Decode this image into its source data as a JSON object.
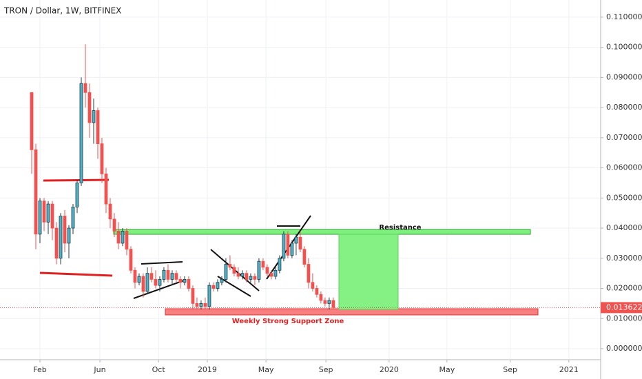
{
  "chart_data": {
    "type": "candlestick",
    "title": "TRON / Dollar, 1W, BITFINEX",
    "open": [
      0.085,
      0.066,
      0.038,
      0.049,
      0.042,
      0.048,
      0.04,
      0.03,
      0.044,
      0.035,
      0.04,
      0.047,
      0.055,
      0.088,
      0.085,
      0.075,
      0.079,
      0.068,
      0.058,
      0.048,
      0.043,
      0.039,
      0.035,
      0.039,
      0.033,
      0.026,
      0.022,
      0.024,
      0.019,
      0.025,
      0.023,
      0.021,
      0.023,
      0.026,
      0.023,
      0.025,
      0.023,
      0.022,
      0.023,
      0.02,
      0.015,
      0.014,
      0.015,
      0.014,
      0.021,
      0.02,
      0.022,
      0.023,
      0.028,
      0.027,
      0.025,
      0.024,
      0.025,
      0.023,
      0.024,
      0.023,
      0.029,
      0.027,
      0.025,
      0.024,
      0.026,
      0.03,
      0.038,
      0.031,
      0.035,
      0.037,
      0.033,
      0.028,
      0.022,
      0.02,
      0.018,
      0.016,
      0.015,
      0.016
    ],
    "high": [
      0.085,
      0.068,
      0.05,
      0.05,
      0.049,
      0.049,
      0.042,
      0.045,
      0.046,
      0.041,
      0.048,
      0.056,
      0.09,
      0.101,
      0.088,
      0.083,
      0.08,
      0.07,
      0.06,
      0.05,
      0.045,
      0.042,
      0.04,
      0.04,
      0.034,
      0.027,
      0.025,
      0.025,
      0.027,
      0.027,
      0.026,
      0.024,
      0.027,
      0.028,
      0.026,
      0.026,
      0.024,
      0.024,
      0.024,
      0.021,
      0.017,
      0.016,
      0.017,
      0.022,
      0.022,
      0.023,
      0.024,
      0.03,
      0.031,
      0.028,
      0.027,
      0.026,
      0.026,
      0.025,
      0.025,
      0.03,
      0.03,
      0.028,
      0.026,
      0.027,
      0.031,
      0.039,
      0.039,
      0.036,
      0.038,
      0.039,
      0.034,
      0.03,
      0.025,
      0.021,
      0.019,
      0.017,
      0.017,
      0.017
    ],
    "low": [
      0.058,
      0.033,
      0.035,
      0.039,
      0.038,
      0.036,
      0.028,
      0.028,
      0.032,
      0.03,
      0.038,
      0.045,
      0.054,
      0.08,
      0.07,
      0.068,
      0.063,
      0.055,
      0.045,
      0.04,
      0.037,
      0.033,
      0.034,
      0.031,
      0.025,
      0.02,
      0.021,
      0.017,
      0.018,
      0.022,
      0.02,
      0.019,
      0.022,
      0.022,
      0.021,
      0.022,
      0.02,
      0.021,
      0.019,
      0.013,
      0.013,
      0.013,
      0.013,
      0.013,
      0.019,
      0.019,
      0.021,
      0.022,
      0.026,
      0.024,
      0.023,
      0.023,
      0.022,
      0.022,
      0.021,
      0.022,
      0.026,
      0.024,
      0.023,
      0.023,
      0.025,
      0.029,
      0.03,
      0.03,
      0.031,
      0.032,
      0.027,
      0.02,
      0.019,
      0.017,
      0.015,
      0.014,
      0.013,
      0.013
    ],
    "close": [
      0.066,
      0.038,
      0.049,
      0.042,
      0.048,
      0.04,
      0.03,
      0.044,
      0.035,
      0.04,
      0.047,
      0.055,
      0.088,
      0.085,
      0.075,
      0.079,
      0.068,
      0.058,
      0.048,
      0.043,
      0.039,
      0.035,
      0.039,
      0.033,
      0.026,
      0.022,
      0.024,
      0.019,
      0.025,
      0.023,
      0.021,
      0.023,
      0.026,
      0.023,
      0.025,
      0.023,
      0.022,
      0.023,
      0.02,
      0.015,
      0.014,
      0.015,
      0.014,
      0.021,
      0.02,
      0.022,
      0.023,
      0.028,
      0.027,
      0.025,
      0.024,
      0.025,
      0.023,
      0.024,
      0.023,
      0.029,
      0.027,
      0.025,
      0.024,
      0.026,
      0.03,
      0.038,
      0.031,
      0.035,
      0.037,
      0.033,
      0.028,
      0.022,
      0.02,
      0.018,
      0.016,
      0.015,
      0.016,
      0.013622
    ],
    "up_color": "#4fb0c6",
    "down_color": "#ef5350",
    "last_price": 0.013622,
    "annotations": [
      "Resistance",
      "Weekly Strong Support Zone"
    ],
    "xlim": [
      -7.67,
      137.7
    ],
    "xticks": [
      {
        "value": 2,
        "label": "Feb"
      },
      {
        "value": 16.5,
        "label": "Jun"
      },
      {
        "value": 30.7,
        "label": "Oct"
      },
      {
        "value": 42.5,
        "label": "2019"
      },
      {
        "value": 56.7,
        "label": "May"
      },
      {
        "value": 71.2,
        "label": "Sep"
      },
      {
        "value": 86.5,
        "label": "2020"
      },
      {
        "value": 100.5,
        "label": "May"
      },
      {
        "value": 115.8,
        "label": "Sep"
      },
      {
        "value": 130,
        "label": "2021"
      }
    ],
    "ylim": [
      -0.00366,
      0.1157
    ],
    "yticks": [
      {
        "value": 0,
        "label": "0.000000"
      },
      {
        "value": 0.01,
        "label": "0.010000"
      },
      {
        "value": 0.02,
        "label": "0.020000"
      },
      {
        "value": 0.03,
        "label": "0.030000"
      },
      {
        "value": 0.04,
        "label": "0.040000"
      },
      {
        "value": 0.05,
        "label": "0.050000"
      },
      {
        "value": 0.06,
        "label": "0.060000"
      },
      {
        "value": 0.07,
        "label": "0.070000"
      },
      {
        "value": 0.08,
        "label": "0.080000"
      },
      {
        "value": 0.09,
        "label": "0.090000"
      },
      {
        "value": 0.1,
        "label": "0.100000"
      },
      {
        "value": 0.11,
        "label": "0.110000"
      }
    ],
    "grid": true
  }
}
